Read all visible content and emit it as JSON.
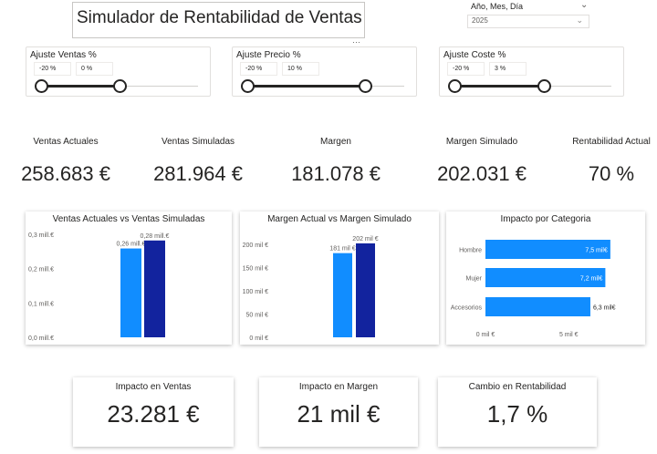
{
  "title": "Simulador de Rentabilidad de Ventas",
  "date_slicer": {
    "label": "Año, Mes, Día",
    "value": "2025",
    "chevron_icon": "chevron-down-icon",
    "more_icon": "more-options-icon"
  },
  "slicers": [
    {
      "title": "Ajuste Ventas %",
      "min": "-20 %",
      "current": "0 %",
      "fraction": 0.5
    },
    {
      "title": "Ajuste Precio %",
      "min": "-20 %",
      "current": "10 %",
      "fraction": 0.75
    },
    {
      "title": "Ajuste Coste %",
      "min": "-20 %",
      "current": "3 %",
      "fraction": 0.575
    }
  ],
  "kpis": [
    {
      "label": "Ventas Actuales",
      "value": "258.683 €"
    },
    {
      "label": "Ventas Simuladas",
      "value": "281.964 €"
    },
    {
      "label": "Margen",
      "value": "181.078 €"
    },
    {
      "label": "Margen Simulado",
      "value": "202.031 €"
    },
    {
      "label": "Rentabilidad Actual",
      "value": "70 %"
    }
  ],
  "colors": {
    "light_blue": "#118DFF",
    "dark_blue": "#12239E",
    "text": "#252423",
    "grid": "#e1dfdd"
  },
  "chart_data": [
    {
      "type": "bar",
      "title": "Ventas Actuales vs Ventas Simuladas",
      "series": [
        {
          "values": [
            258683
          ],
          "label": "0,26 mill.€",
          "color": "#118DFF"
        },
        {
          "values": [
            281964
          ],
          "label": "0,28 mill.€",
          "color": "#12239E"
        }
      ],
      "ylim": [
        0,
        300000
      ],
      "yticks": [
        0,
        100000,
        200000,
        300000
      ],
      "yticklabels": [
        "0,0 mill.€",
        "0,1 mill.€",
        "0,2 mill.€",
        "0,3 mill.€"
      ],
      "grid": false
    },
    {
      "type": "bar",
      "title": "Margen Actual vs Margen Simulado",
      "series": [
        {
          "values": [
            181078
          ],
          "label": "181 mil €",
          "color": "#118DFF"
        },
        {
          "values": [
            202031
          ],
          "label": "202 mil €",
          "color": "#12239E"
        }
      ],
      "ylim": [
        0,
        200000
      ],
      "yticks": [
        0,
        50000,
        100000,
        150000,
        200000
      ],
      "yticklabels": [
        "0 mil €",
        "50 mil €",
        "100 mil €",
        "150 mil €",
        "200 mil €"
      ],
      "grid": false
    },
    {
      "type": "bar",
      "orientation": "horizontal",
      "title": "Impacto por Categoria",
      "categories": [
        "Hombre",
        "Mujer",
        "Accesorios"
      ],
      "values": [
        7500,
        7200,
        6300
      ],
      "data_labels": [
        "7,5 mil€",
        "7,2 mil€",
        "6,3 mil€"
      ],
      "xlim": [
        0,
        8000
      ],
      "xticks": [
        0,
        5000
      ],
      "xticklabels": [
        "0 mil €",
        "5 mil €"
      ],
      "color": "#118DFF",
      "grid": false
    }
  ],
  "bottom_cards": [
    {
      "label": "Impacto en Ventas",
      "value": "23.281 €"
    },
    {
      "label": "Impacto en Margen",
      "value": "21 mil €"
    },
    {
      "label": "Cambio en Rentabilidad",
      "value": "1,7 %"
    }
  ]
}
